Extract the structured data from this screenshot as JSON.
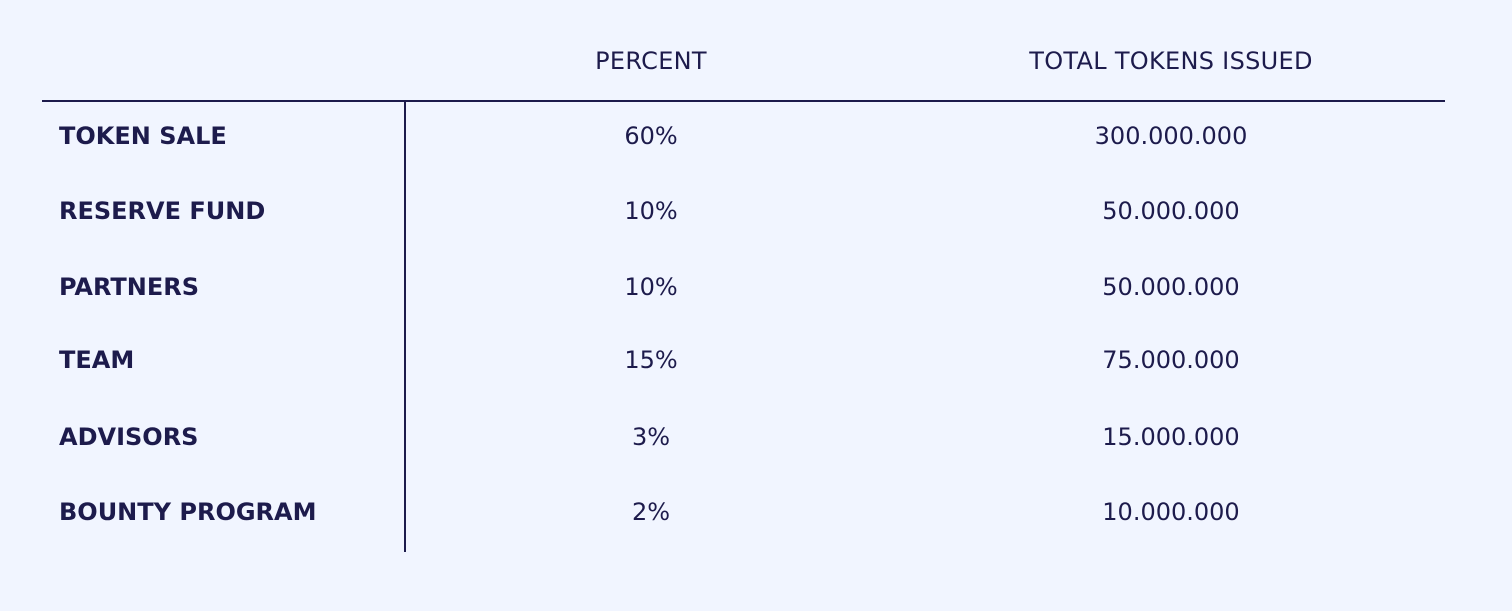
{
  "table": {
    "headers": [
      "PERCENT",
      "TOTAL TOKENS ISSUED"
    ],
    "rows": [
      [
        "TOKEN SALE",
        "60%",
        "300.000.000"
      ],
      [
        "RESERVE FUND",
        "10%",
        "50.000.000"
      ],
      [
        "PARTNERS",
        "10%",
        "50.000.000"
      ],
      [
        "TEAM",
        "15%",
        "75.000.000"
      ],
      [
        "ADVISORS",
        "3%",
        "15.000.000"
      ],
      [
        "BOUNTY PROGRAM",
        "2%",
        "10.000.000"
      ]
    ]
  }
}
